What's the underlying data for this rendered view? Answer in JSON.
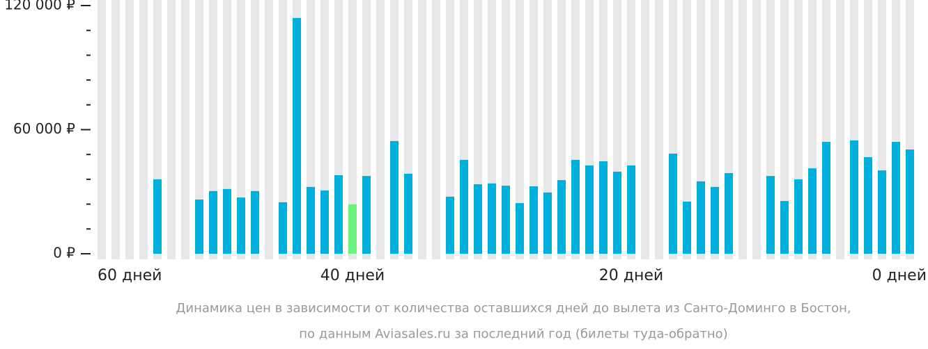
{
  "chart_data": {
    "type": "bar",
    "caption": [
      "Динамика цен в зависимости от количества оставшихся дней до вылета из Санто-Доминго в Бостон,",
      "по данным Aviasales.ru за последний год (билеты туда-обратно)"
    ],
    "x": [
      58,
      57,
      56,
      55,
      54,
      53,
      52,
      51,
      50,
      49,
      48,
      47,
      46,
      45,
      44,
      43,
      42,
      41,
      40,
      39,
      38,
      37,
      36,
      35,
      34,
      33,
      32,
      31,
      30,
      29,
      28,
      27,
      26,
      25,
      24,
      23,
      22,
      21,
      20,
      19,
      18,
      17,
      16,
      15,
      14,
      13,
      12,
      11,
      10,
      9,
      8,
      7,
      6,
      5,
      4,
      3,
      2,
      1,
      0
    ],
    "values": [
      null,
      null,
      null,
      null,
      36000,
      null,
      null,
      26200,
      30300,
      31300,
      27200,
      30300,
      null,
      24900,
      114000,
      32300,
      30600,
      38000,
      23900,
      37600,
      null,
      54500,
      38700,
      null,
      null,
      27600,
      45400,
      33600,
      34000,
      32900,
      24500,
      32600,
      29600,
      35600,
      45400,
      42700,
      44700,
      39700,
      42700,
      null,
      null,
      48400,
      25200,
      35000,
      32300,
      39000,
      null,
      null,
      37600,
      25500,
      36000,
      41300,
      54100,
      null,
      54800,
      46700,
      40300,
      54100,
      50400
    ],
    "color": "#00b0dc",
    "highlight_index": 18,
    "highlight_color": "#6ef47e",
    "slot_color": "#e8e8e8",
    "xlim": [
      58.5,
      -0.5
    ],
    "xticks": [
      {
        "value": 60,
        "label": "60 дней"
      },
      {
        "value": 40,
        "label": "40 дней"
      },
      {
        "value": 20,
        "label": "20 дней"
      },
      {
        "value": 0,
        "label": "0 дней"
      }
    ],
    "ylim": [
      0,
      120000
    ],
    "yticks": [
      {
        "value": 0,
        "label": "0 ₽"
      },
      {
        "value": 60000,
        "label": "60 000 ₽"
      },
      {
        "value": 120000,
        "label": "120 000 ₽"
      }
    ],
    "minor_yticks": [
      12000,
      24000,
      36000,
      48000,
      72000,
      84000,
      96000,
      108000
    ]
  }
}
